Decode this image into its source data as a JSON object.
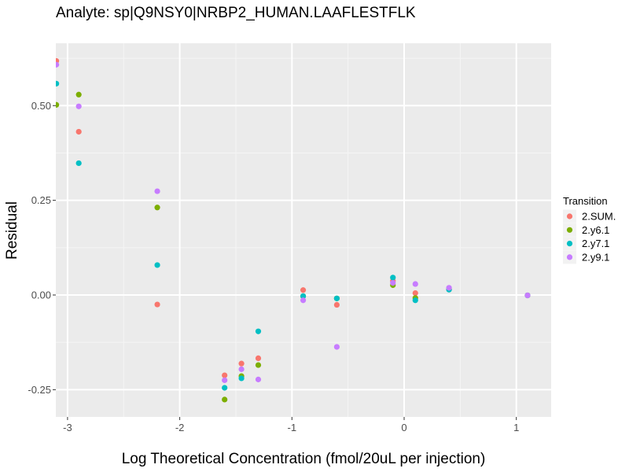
{
  "chart_data": {
    "type": "scatter",
    "title": "Analyte: sp|Q9NSY0|NRBP2_HUMAN.LAAFLESTFLK",
    "xlabel": "Log Theoretical Concentration (fmol/20uL per injection)",
    "ylabel": "Residual",
    "xlim": [
      -3.1,
      1.3
    ],
    "ylim": [
      -0.32,
      0.645
    ],
    "x_ticks": [
      -3,
      -2,
      -1,
      0,
      1
    ],
    "x_tick_labels": [
      "-3",
      "-2",
      "-1",
      "0",
      "1"
    ],
    "y_ticks": [
      -0.25,
      0,
      0.25,
      0.5
    ],
    "y_tick_labels": [
      "-0.25",
      "0.00",
      "0.25",
      "0.50"
    ],
    "grid": true,
    "background": "#ebebeb",
    "legend": {
      "title": "Transition",
      "position": "right"
    },
    "series": [
      {
        "name": "2.SUM.",
        "color": "#F8766D",
        "points": [
          {
            "x": -3.1,
            "y": 0.618
          },
          {
            "x": -2.9,
            "y": 0.431
          },
          {
            "x": -2.2,
            "y": -0.025
          },
          {
            "x": -1.6,
            "y": -0.212
          },
          {
            "x": -1.45,
            "y": -0.181
          },
          {
            "x": -1.3,
            "y": -0.167
          },
          {
            "x": -0.9,
            "y": 0.013
          },
          {
            "x": -0.6,
            "y": -0.026
          },
          {
            "x": -0.1,
            "y": 0.037
          },
          {
            "x": 0.1,
            "y": 0.005
          },
          {
            "x": 0.4,
            "y": 0.015
          },
          {
            "x": 1.1,
            "y": -0.001
          }
        ]
      },
      {
        "name": "2.y6.1",
        "color": "#7CAE00",
        "points": [
          {
            "x": -3.1,
            "y": 0.502
          },
          {
            "x": -2.9,
            "y": 0.529
          },
          {
            "x": -2.2,
            "y": 0.231
          },
          {
            "x": -1.6,
            "y": -0.276
          },
          {
            "x": -1.45,
            "y": -0.214
          },
          {
            "x": -1.3,
            "y": -0.185
          },
          {
            "x": -0.9,
            "y": -0.003
          },
          {
            "x": -0.6,
            "y": -0.009
          },
          {
            "x": -0.1,
            "y": 0.026
          },
          {
            "x": 0.1,
            "y": -0.008
          },
          {
            "x": 0.4,
            "y": 0.015
          },
          {
            "x": 1.1,
            "y": -0.001
          }
        ]
      },
      {
        "name": "2.y7.1",
        "color": "#00BFC4",
        "points": [
          {
            "x": -3.1,
            "y": 0.558
          },
          {
            "x": -2.9,
            "y": 0.348
          },
          {
            "x": -2.2,
            "y": 0.079
          },
          {
            "x": -1.6,
            "y": -0.245
          },
          {
            "x": -1.45,
            "y": -0.22
          },
          {
            "x": -1.3,
            "y": -0.096
          },
          {
            "x": -0.9,
            "y": -0.003
          },
          {
            "x": -0.6,
            "y": -0.009
          },
          {
            "x": -0.1,
            "y": 0.046
          },
          {
            "x": 0.1,
            "y": -0.014
          },
          {
            "x": 0.4,
            "y": 0.014
          },
          {
            "x": 1.1,
            "y": -0.001
          }
        ]
      },
      {
        "name": "2.y9.1",
        "color": "#C77CFF",
        "points": [
          {
            "x": -3.1,
            "y": 0.608
          },
          {
            "x": -2.9,
            "y": 0.498
          },
          {
            "x": -2.2,
            "y": 0.274
          },
          {
            "x": -1.6,
            "y": -0.225
          },
          {
            "x": -1.45,
            "y": -0.196
          },
          {
            "x": -1.3,
            "y": -0.223
          },
          {
            "x": -0.9,
            "y": -0.014
          },
          {
            "x": -0.6,
            "y": -0.137
          },
          {
            "x": -0.1,
            "y": 0.032
          },
          {
            "x": 0.1,
            "y": 0.029
          },
          {
            "x": 0.4,
            "y": 0.019
          },
          {
            "x": 1.1,
            "y": -0.001
          }
        ]
      }
    ]
  }
}
